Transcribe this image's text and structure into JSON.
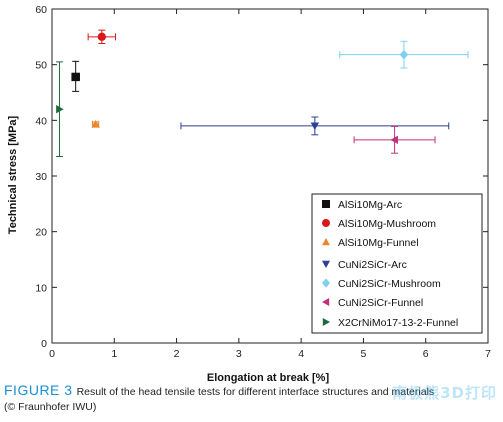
{
  "chart_data": {
    "type": "scatter",
    "xlabel": "Elongation at break [%]",
    "ylabel": "Technical stress [MPa]",
    "xlim": [
      0,
      7
    ],
    "ylim": [
      0,
      60
    ],
    "xticks": [
      0,
      1,
      2,
      3,
      4,
      5,
      6,
      7
    ],
    "yticks": [
      0,
      10,
      20,
      30,
      40,
      50,
      60
    ],
    "grid": false,
    "legend_position": "bottom-right",
    "series": [
      {
        "name": "AlSi10Mg-Arc",
        "marker": "square",
        "color": "#111111",
        "x": 0.38,
        "y": 47.8,
        "xerr": [
          0.06,
          0.06
        ],
        "yerr": [
          2.6,
          2.8
        ]
      },
      {
        "name": "AlSi10Mg-Mushroom",
        "marker": "circle",
        "color": "#d7191c",
        "x": 0.8,
        "y": 55.0,
        "xerr": [
          0.22,
          0.22
        ],
        "yerr": [
          1.2,
          1.2
        ]
      },
      {
        "name": "AlSi10Mg-Funnel",
        "marker": "triangle-up",
        "color": "#e8872e",
        "x": 0.7,
        "y": 39.3,
        "xerr": [
          0.05,
          0.05
        ],
        "yerr": [
          0.4,
          0.4
        ]
      },
      {
        "name": "CuNi2SiCr-Arc",
        "marker": "triangle-down",
        "color": "#2e3f95",
        "x": 4.22,
        "y": 39.0,
        "xerr": [
          2.15,
          2.15
        ],
        "yerr": [
          1.6,
          1.6
        ]
      },
      {
        "name": "CuNi2SiCr-Mushroom",
        "marker": "diamond",
        "color": "#7fd0f0",
        "x": 5.65,
        "y": 51.8,
        "xerr": [
          1.03,
          1.03
        ],
        "yerr": [
          2.4,
          2.4
        ]
      },
      {
        "name": "CuNi2SiCr-Funnel",
        "marker": "triangle-left",
        "color": "#c2307a",
        "x": 5.5,
        "y": 36.5,
        "xerr": [
          0.65,
          0.65
        ],
        "yerr": [
          2.4,
          2.4
        ]
      },
      {
        "name": "X2CrNiMo17-13-2-Funnel",
        "marker": "triangle-right",
        "color": "#1e6b3a",
        "x": 0.12,
        "y": 42.0,
        "xerr": [
          0.0,
          0.0
        ],
        "yerr": [
          8.5,
          8.5
        ]
      }
    ]
  },
  "caption": {
    "figure_label": "FIGURE 3",
    "text": "Result of the head tensile tests for different interface structures and materials",
    "credit": "(© Fraunhofer IWU)"
  },
  "watermark": "南极熊3D打印"
}
